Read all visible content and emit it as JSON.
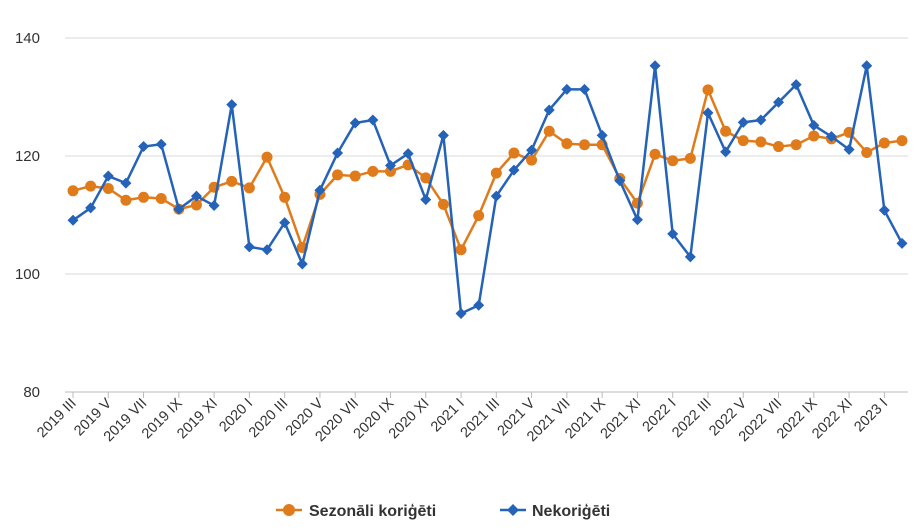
{
  "chart_data": {
    "type": "line",
    "y_ticks": [
      "80",
      "100",
      "120",
      "140"
    ],
    "ylim": [
      80,
      140
    ],
    "grid": "horizontal",
    "legend_position": "bottom-center",
    "categories": [
      "2019 III",
      "2019 IV",
      "2019 V",
      "2019 VI",
      "2019 VII",
      "2019 VIII",
      "2019 IX",
      "2019 X",
      "2019 XI",
      "2019 XII",
      "2020 I",
      "2020 II",
      "2020 III",
      "2020 IV",
      "2020 V",
      "2020 VI",
      "2020 VII",
      "2020 VIII",
      "2020 IX",
      "2020 X",
      "2020 XI",
      "2020 XII",
      "2021 I",
      "2021 II",
      "2021 III",
      "2021 IV",
      "2021 V",
      "2021 VI",
      "2021 VII",
      "2021 VIII",
      "2021 IX",
      "2021 X",
      "2021 XI",
      "2021 XII",
      "2022 I",
      "2022 II",
      "2022 III",
      "2022 IV",
      "2022 V",
      "2022 VI",
      "2022 VII",
      "2022 VIII",
      "2022 IX",
      "2022 X",
      "2022 XI",
      "2022 XII",
      "2023 I",
      "2023 II"
    ],
    "x_tick_labels": [
      "2019 III",
      "2019 V",
      "2019 VII",
      "2019 IX",
      "2019 XI",
      "2020 I",
      "2020 III",
      "2020 V",
      "2020 VII",
      "2020 IX",
      "2020 XI",
      "2021 I",
      "2021 III",
      "2021 V",
      "2021 VII",
      "2021 IX",
      "2021 XI",
      "2022 I",
      "2022 III",
      "2022 V",
      "2022 VII",
      "2022 IX",
      "2022 XI",
      "2023 I"
    ],
    "series": [
      {
        "name": "Sezonāli koriģēti",
        "color": "#e07b1c",
        "marker": "circle",
        "values": [
          114.1,
          114.9,
          114.5,
          112.5,
          113.0,
          112.8,
          111.0,
          111.7,
          114.7,
          115.7,
          114.6,
          119.8,
          113.0,
          104.5,
          113.5,
          116.8,
          116.6,
          117.4,
          117.4,
          118.5,
          116.3,
          111.8,
          104.1,
          109.9,
          117.1,
          120.5,
          119.3,
          124.2,
          122.1,
          121.9,
          121.9,
          116.2,
          112.0,
          120.3,
          119.2,
          119.6,
          131.2,
          124.2,
          122.6,
          122.4,
          121.6,
          121.9,
          123.4,
          122.9,
          124.0,
          120.6,
          122.2,
          122.6
        ]
      },
      {
        "name": "Nekoriģēti",
        "color": "#2563b8",
        "marker": "diamond",
        "values": [
          109.1,
          111.2,
          116.6,
          115.4,
          121.6,
          122.0,
          111.0,
          113.2,
          111.6,
          128.7,
          104.6,
          104.1,
          108.7,
          101.7,
          114.2,
          120.5,
          125.6,
          126.1,
          118.4,
          120.4,
          112.6,
          123.5,
          93.3,
          94.7,
          113.2,
          117.6,
          121.0,
          127.8,
          131.3,
          131.3,
          123.5,
          115.8,
          109.2,
          135.3,
          106.8,
          102.9,
          127.3,
          120.7,
          125.7,
          126.1,
          129.1,
          132.1,
          125.2,
          123.3,
          121.1,
          135.3,
          110.8,
          105.2
        ]
      }
    ]
  }
}
